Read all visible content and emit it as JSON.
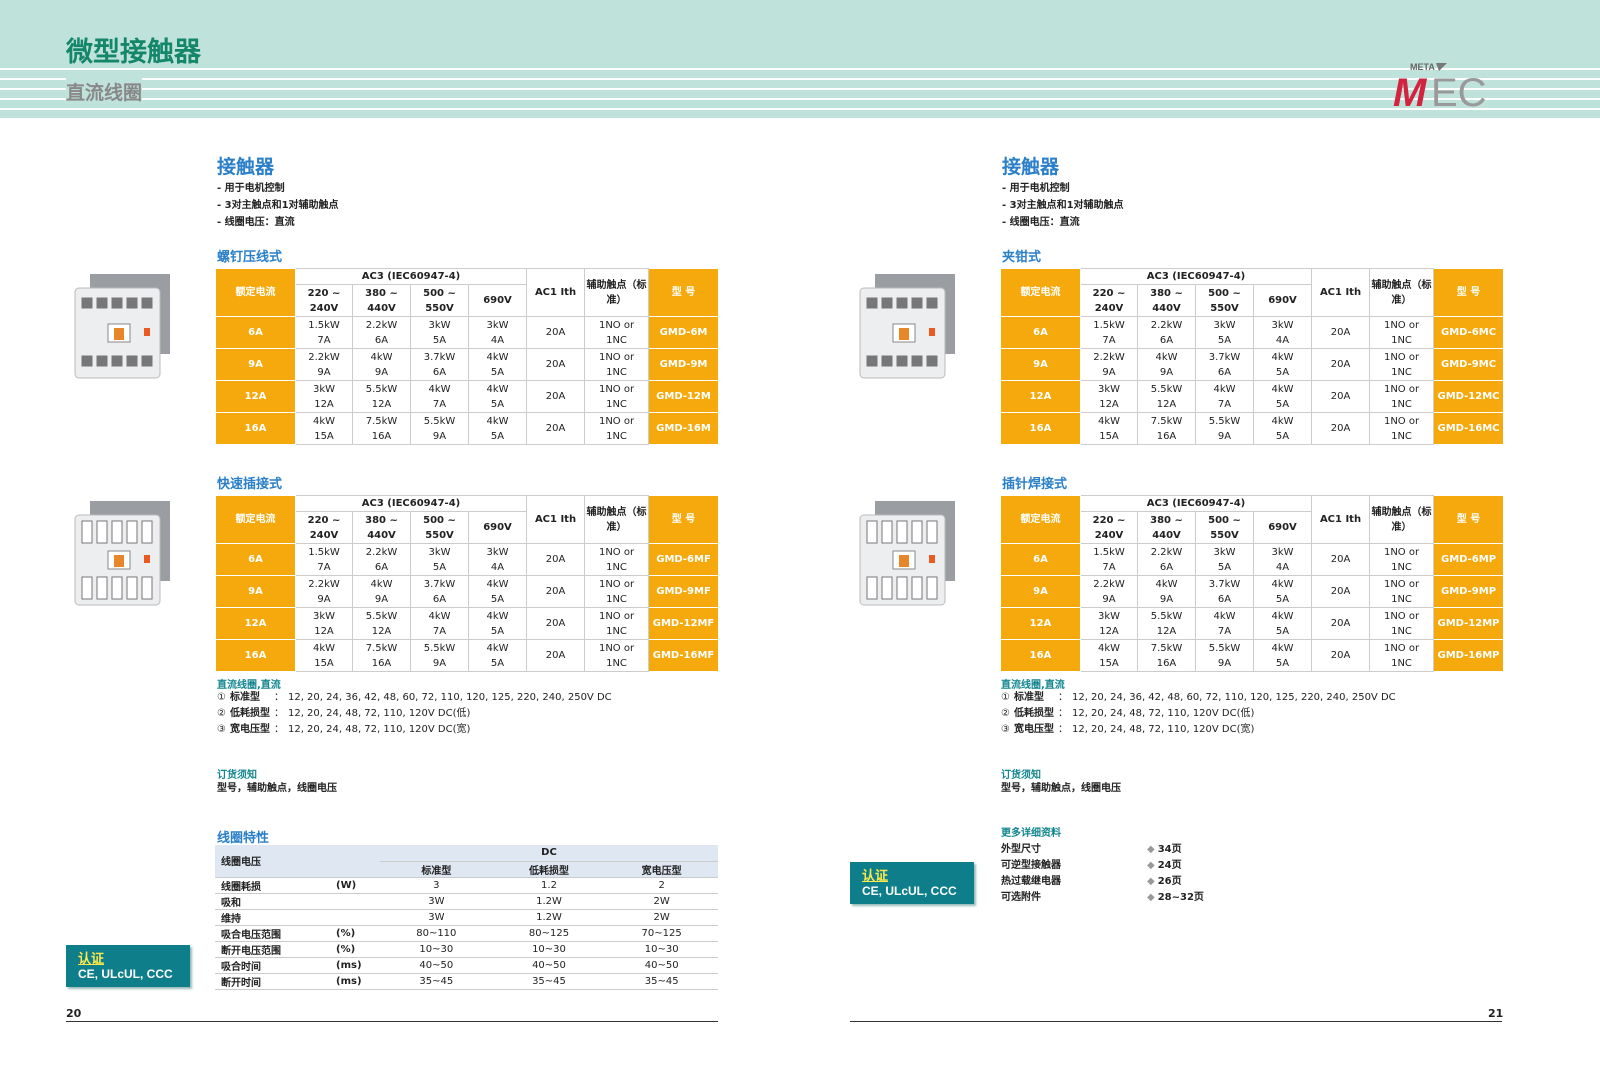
{
  "header": {
    "title": "微型接触器",
    "subtitle": "直流线圈",
    "logo_text": "META MEC",
    "accent": "#14876a"
  },
  "pages": [
    {
      "heading": "接触器",
      "bullets": [
        "- 用于电机控制",
        "- 3对主触点和1对辅助触点",
        "- 线圈电压：直流"
      ],
      "tables": [
        {
          "section": "螺钉压线式",
          "models": [
            "GMD-6M",
            "GMD-9M",
            "GMD-12M",
            "GMD-16M"
          ]
        },
        {
          "section": "快速插接式",
          "models": [
            "GMD-6MF",
            "GMD-9MF",
            "GMD-12MF",
            "GMD-16MF"
          ]
        }
      ]
    },
    {
      "heading": "接触器",
      "bullets": [
        "- 用于电机控制",
        "- 3对主触点和1对辅助触点",
        "- 线圈电压：直流"
      ],
      "tables": [
        {
          "section": "夹钳式",
          "models": [
            "GMD-6MC",
            "GMD-9MC",
            "GMD-12MC",
            "GMD-16MC"
          ]
        },
        {
          "section": "插针焊接式",
          "models": [
            "GMD-6MP",
            "GMD-9MP",
            "GMD-12MP",
            "GMD-16MP"
          ]
        }
      ]
    }
  ],
  "spec_table": {
    "h_rated": "额定电流",
    "h_ac3": "AC3 (IEC60947-4)",
    "h_volts": [
      "220 ~ 240V",
      "380 ~ 440V",
      "500 ~ 550V",
      "690V"
    ],
    "h_ac1": "AC1 Ith",
    "h_aux": "辅助触点（标准）",
    "h_model": "型 号",
    "rows": [
      {
        "rated": "6A",
        "cells": [
          [
            "1.5kW",
            "7A"
          ],
          [
            "2.2kW",
            "6A"
          ],
          [
            "3kW",
            "5A"
          ],
          [
            "3kW",
            "4A"
          ]
        ],
        "ac1": "20A",
        "aux": [
          "1NO or",
          "1NC"
        ]
      },
      {
        "rated": "9A",
        "cells": [
          [
            "2.2kW",
            "9A"
          ],
          [
            "4kW",
            "9A"
          ],
          [
            "3.7kW",
            "6A"
          ],
          [
            "4kW",
            "5A"
          ]
        ],
        "ac1": "20A",
        "aux": [
          "1NO or",
          "1NC"
        ]
      },
      {
        "rated": "12A",
        "cells": [
          [
            "3kW",
            "12A"
          ],
          [
            "5.5kW",
            "12A"
          ],
          [
            "4kW",
            "7A"
          ],
          [
            "4kW",
            "5A"
          ]
        ],
        "ac1": "20A",
        "aux": [
          "1NO or",
          "1NC"
        ]
      },
      {
        "rated": "16A",
        "cells": [
          [
            "4kW",
            "15A"
          ],
          [
            "7.5kW",
            "16A"
          ],
          [
            "5.5kW",
            "9A"
          ],
          [
            "4kW",
            "5A"
          ]
        ],
        "ac1": "20A",
        "aux": [
          "1NO or",
          "1NC"
        ]
      }
    ]
  },
  "coil_voltage": {
    "title": "直流线圈,直流",
    "items": [
      {
        "n": "①",
        "label": "标准型　",
        "sep": "：",
        "value": "12, 20, 24, 36, 42, 48, 60, 72, 110, 120, 125, 220, 240, 250V DC"
      },
      {
        "n": "②",
        "label": "低耗损型",
        "sep": "：",
        "value": "12, 20, 24, 48, 72, 110, 120V DC(低)"
      },
      {
        "n": "③",
        "label": "宽电压型",
        "sep": "：",
        "value": "12, 20, 24, 48, 72, 110, 120V DC(宽)"
      }
    ]
  },
  "order": {
    "title": "订货须知",
    "text": "型号，辅助触点，线圈电压"
  },
  "coil": {
    "title": "线圈特性",
    "h_label": "线圈电压",
    "h_dc": "DC",
    "h_cols": [
      "标准型",
      "低耗损型",
      "宽电压型"
    ],
    "rows": [
      {
        "label": "线圈耗损",
        "unit": "(W)",
        "vals": [
          "3",
          "1.2",
          "2"
        ]
      },
      {
        "label": "吸和",
        "unit": "",
        "vals": [
          "3W",
          "1.2W",
          "2W"
        ]
      },
      {
        "label": "维持",
        "unit": "",
        "vals": [
          "3W",
          "1.2W",
          "2W"
        ]
      },
      {
        "label": "吸合电压范围",
        "unit": "(%)",
        "vals": [
          "80~110",
          "80~125",
          "70~125"
        ]
      },
      {
        "label": "断开电压范围",
        "unit": "(%)",
        "vals": [
          "10~30",
          "10~30",
          "10~30"
        ]
      },
      {
        "label": "吸合时间",
        "unit": "(ms)",
        "vals": [
          "40~50",
          "40~50",
          "40~50"
        ]
      },
      {
        "label": "断开时间",
        "unit": "(ms)",
        "vals": [
          "35~45",
          "35~45",
          "35~45"
        ]
      }
    ]
  },
  "cert": {
    "label": "认证",
    "value": "CE, ULcUL, CCC"
  },
  "more": {
    "title": "更多详细资料",
    "items": [
      {
        "label": "外型尺寸",
        "page": "34页"
      },
      {
        "label": "可逆型接触器",
        "page": "24页"
      },
      {
        "label": "热过载继电器",
        "page": "26页"
      },
      {
        "label": "可选附件",
        "page": "28~32页"
      }
    ]
  },
  "page_numbers": {
    "left": "20",
    "right": "21"
  }
}
